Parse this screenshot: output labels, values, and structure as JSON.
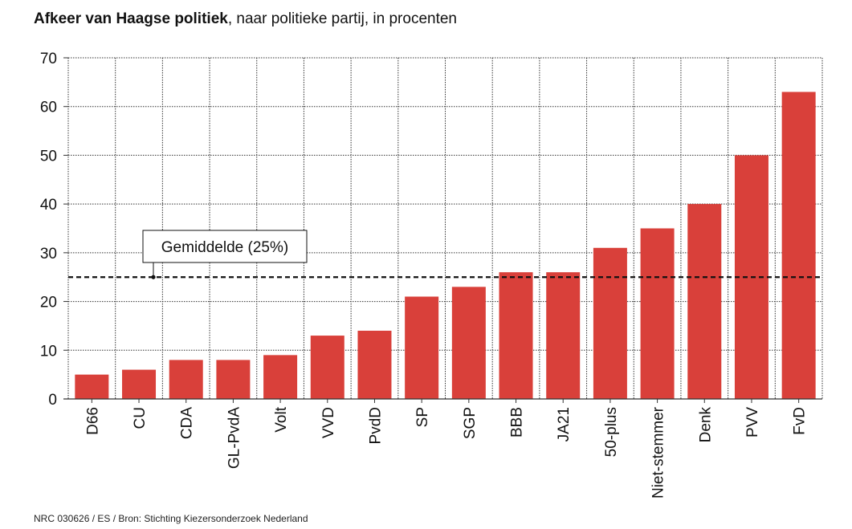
{
  "title_bold": "Afkeer van Haagse politiek",
  "title_rest": ", naar politieke partij, in procenten",
  "source": "NRC 030626 / ES / Bron: Stichting Kiezersonderzoek Nederland",
  "colors": {
    "bar": "#d9403a",
    "grid": "#333333",
    "text": "#111111"
  },
  "chart_data": {
    "type": "bar",
    "title": "Afkeer van Haagse politiek",
    "subtitle": ", naar politieke partij, in procenten",
    "xlabel": "",
    "ylabel": "",
    "ylim": [
      0,
      70
    ],
    "yticks": [
      0,
      10,
      20,
      30,
      40,
      50,
      60,
      70
    ],
    "grid": true,
    "categories": [
      "D66",
      "CU",
      "CDA",
      "GL-PvdA",
      "Volt",
      "VVD",
      "PvdD",
      "SP",
      "SGP",
      "BBB",
      "JA21",
      "50-plus",
      "Niet-stemmer",
      "Denk",
      "PVV",
      "FvD"
    ],
    "values": [
      5,
      6,
      8,
      8,
      9,
      13,
      14,
      21,
      23,
      26,
      26,
      31,
      35,
      40,
      50,
      63
    ],
    "average": {
      "label": "Gemiddelde (25%)",
      "value": 25
    }
  }
}
